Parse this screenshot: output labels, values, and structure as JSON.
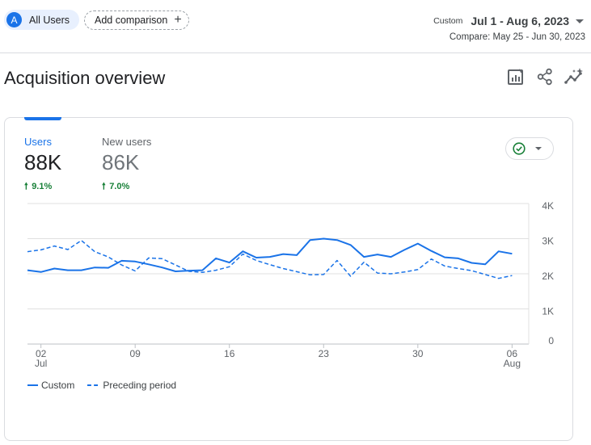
{
  "segment": {
    "avatar_letter": "A",
    "label": "All Users"
  },
  "add_comparison": {
    "label": "Add comparison",
    "plus": "+"
  },
  "date": {
    "custom_label": "Custom",
    "range": "Jul 1 - Aug 6, 2023",
    "compare": "Compare: May 25 - Jun 30, 2023"
  },
  "page": {
    "title": "Acquisition overview"
  },
  "icons": {
    "customize": "customize-report-icon",
    "share": "share-icon",
    "insights": "insights-icon",
    "status": "check-circle-icon"
  },
  "metrics": [
    {
      "label": "Users",
      "value": "88K",
      "change": "9.1%",
      "active": true
    },
    {
      "label": "New users",
      "value": "86K",
      "change": "7.0%",
      "active": false
    }
  ],
  "colors": {
    "accent": "#1a73e8",
    "positive": "#188038",
    "grid": "#e0e0e0",
    "muted_value": "#70757a"
  },
  "chart_data": {
    "type": "line",
    "y_axis": {
      "ticks": [
        "4K",
        "3K",
        "2K",
        "1K",
        "0"
      ],
      "tick_values": [
        4000,
        3000,
        2000,
        1000,
        0
      ],
      "range": [
        0,
        4000
      ]
    },
    "x_axis": {
      "ticks": [
        {
          "day": 2,
          "label": "02",
          "sub": "Jul"
        },
        {
          "day": 9,
          "label": "09",
          "sub": ""
        },
        {
          "day": 16,
          "label": "16",
          "sub": ""
        },
        {
          "day": 23,
          "label": "23",
          "sub": ""
        },
        {
          "day": 30,
          "label": "30",
          "sub": ""
        },
        {
          "day": 37,
          "label": "06",
          "sub": "Aug"
        }
      ],
      "range": [
        1,
        38
      ]
    },
    "series": [
      {
        "name": "Custom",
        "style": "solid",
        "color": "#1a73e8",
        "values": [
          2100,
          2050,
          2150,
          2100,
          2100,
          2180,
          2170,
          2370,
          2350,
          2270,
          2180,
          2070,
          2090,
          2100,
          2440,
          2320,
          2640,
          2460,
          2480,
          2560,
          2530,
          2960,
          3000,
          2960,
          2820,
          2480,
          2550,
          2480,
          2680,
          2860,
          2650,
          2470,
          2440,
          2310,
          2270,
          2640,
          2570
        ]
      },
      {
        "name": "Preceding period",
        "style": "dashed",
        "color": "#1a73e8",
        "values": [
          2630,
          2680,
          2790,
          2690,
          2950,
          2630,
          2480,
          2250,
          2080,
          2450,
          2430,
          2250,
          2070,
          2040,
          2100,
          2200,
          2560,
          2380,
          2260,
          2150,
          2060,
          1970,
          1980,
          2380,
          1930,
          2330,
          2020,
          2000,
          2050,
          2120,
          2420,
          2220,
          2150,
          2090,
          1980,
          1870,
          1950
        ]
      }
    ],
    "legend": [
      "Custom",
      "Preceding period"
    ],
    "legend_placement": "bottom-left",
    "grid": true
  }
}
